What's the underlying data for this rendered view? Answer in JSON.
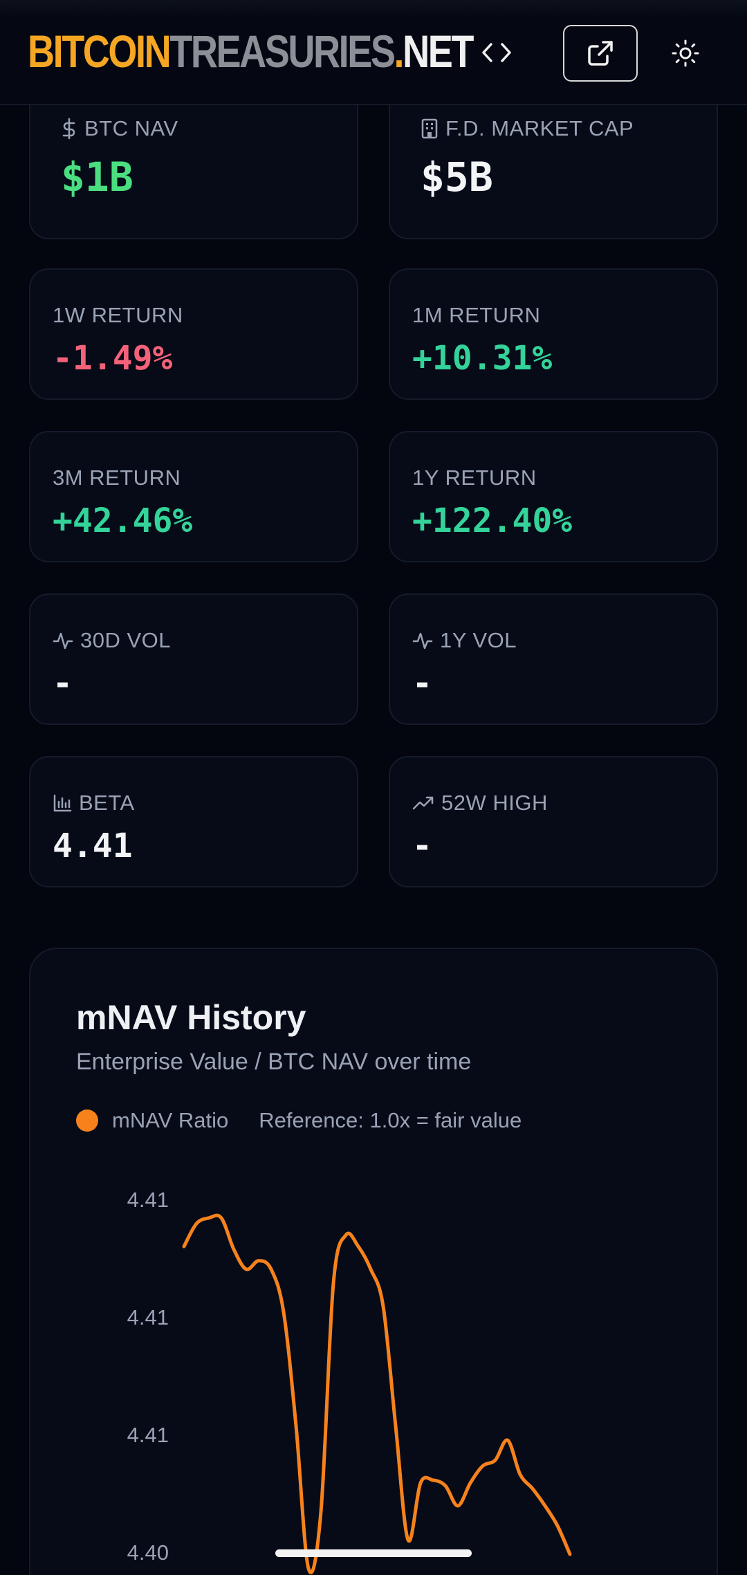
{
  "header": {
    "logo": {
      "part1": "BITCOIN",
      "part2": "TREASURIES",
      "part3": ".",
      "part4": "NET"
    },
    "icons": {
      "embed": "code-icon",
      "external": "external-link-icon",
      "theme": "sun-icon"
    }
  },
  "metrics": {
    "btc_nav": {
      "label": "BTC NAV",
      "value": "$1B",
      "icon": "dollar-icon"
    },
    "fd_market_cap": {
      "label": "F.D. MARKET CAP",
      "value": "$5B",
      "icon": "building-icon"
    },
    "return_1w": {
      "label": "1W RETURN",
      "value": "-1.49%"
    },
    "return_1m": {
      "label": "1M RETURN",
      "value": "+10.31%"
    },
    "return_3m": {
      "label": "3M RETURN",
      "value": "+42.46%"
    },
    "return_1y": {
      "label": "1Y RETURN",
      "value": "+122.40%"
    },
    "vol_30d": {
      "label": "30D VOL",
      "value": "-",
      "icon": "activity-icon"
    },
    "vol_1y": {
      "label": "1Y VOL",
      "value": "-",
      "icon": "activity-icon"
    },
    "beta": {
      "label": "BETA",
      "value": "4.41",
      "icon": "bar-chart-icon"
    },
    "high_52w": {
      "label": "52W HIGH",
      "value": "-",
      "icon": "trending-up-icon"
    }
  },
  "chart": {
    "title": "mNAV History",
    "subtitle": "Enterprise Value / BTC NAV over time",
    "legend_series": "mNAV Ratio",
    "legend_reference": "Reference: 1.0x = fair value"
  },
  "colors": {
    "accent_orange": "#f7821c",
    "positive_green": "#34d399",
    "negative_red": "#f4627a",
    "logo_orange": "#f5a623"
  },
  "chart_data": {
    "type": "line",
    "title": "mNAV History",
    "subtitle": "Enterprise Value / BTC NAV over time",
    "series": [
      {
        "name": "mNAV Ratio",
        "color": "#f7821c",
        "values": [
          4.4093,
          4.4101,
          4.4103,
          4.4103,
          4.4092,
          4.4085,
          4.4088,
          4.4085,
          4.407,
          4.403,
          4.398,
          4.4,
          4.408,
          4.4097,
          4.4093,
          4.4085,
          4.4072,
          4.403,
          4.399,
          4.401,
          4.4011,
          4.4009,
          4.4002,
          4.401,
          4.4016,
          4.4018,
          4.4025,
          4.4013,
          4.4008,
          4.4002,
          4.3995,
          4.3985
        ]
      }
    ],
    "y_tick_labels": [
      "4.41",
      "4.41",
      "4.41",
      "4.40"
    ],
    "ylim": [
      4.3985,
      4.411
    ],
    "grid": false,
    "legend": "top-left"
  }
}
